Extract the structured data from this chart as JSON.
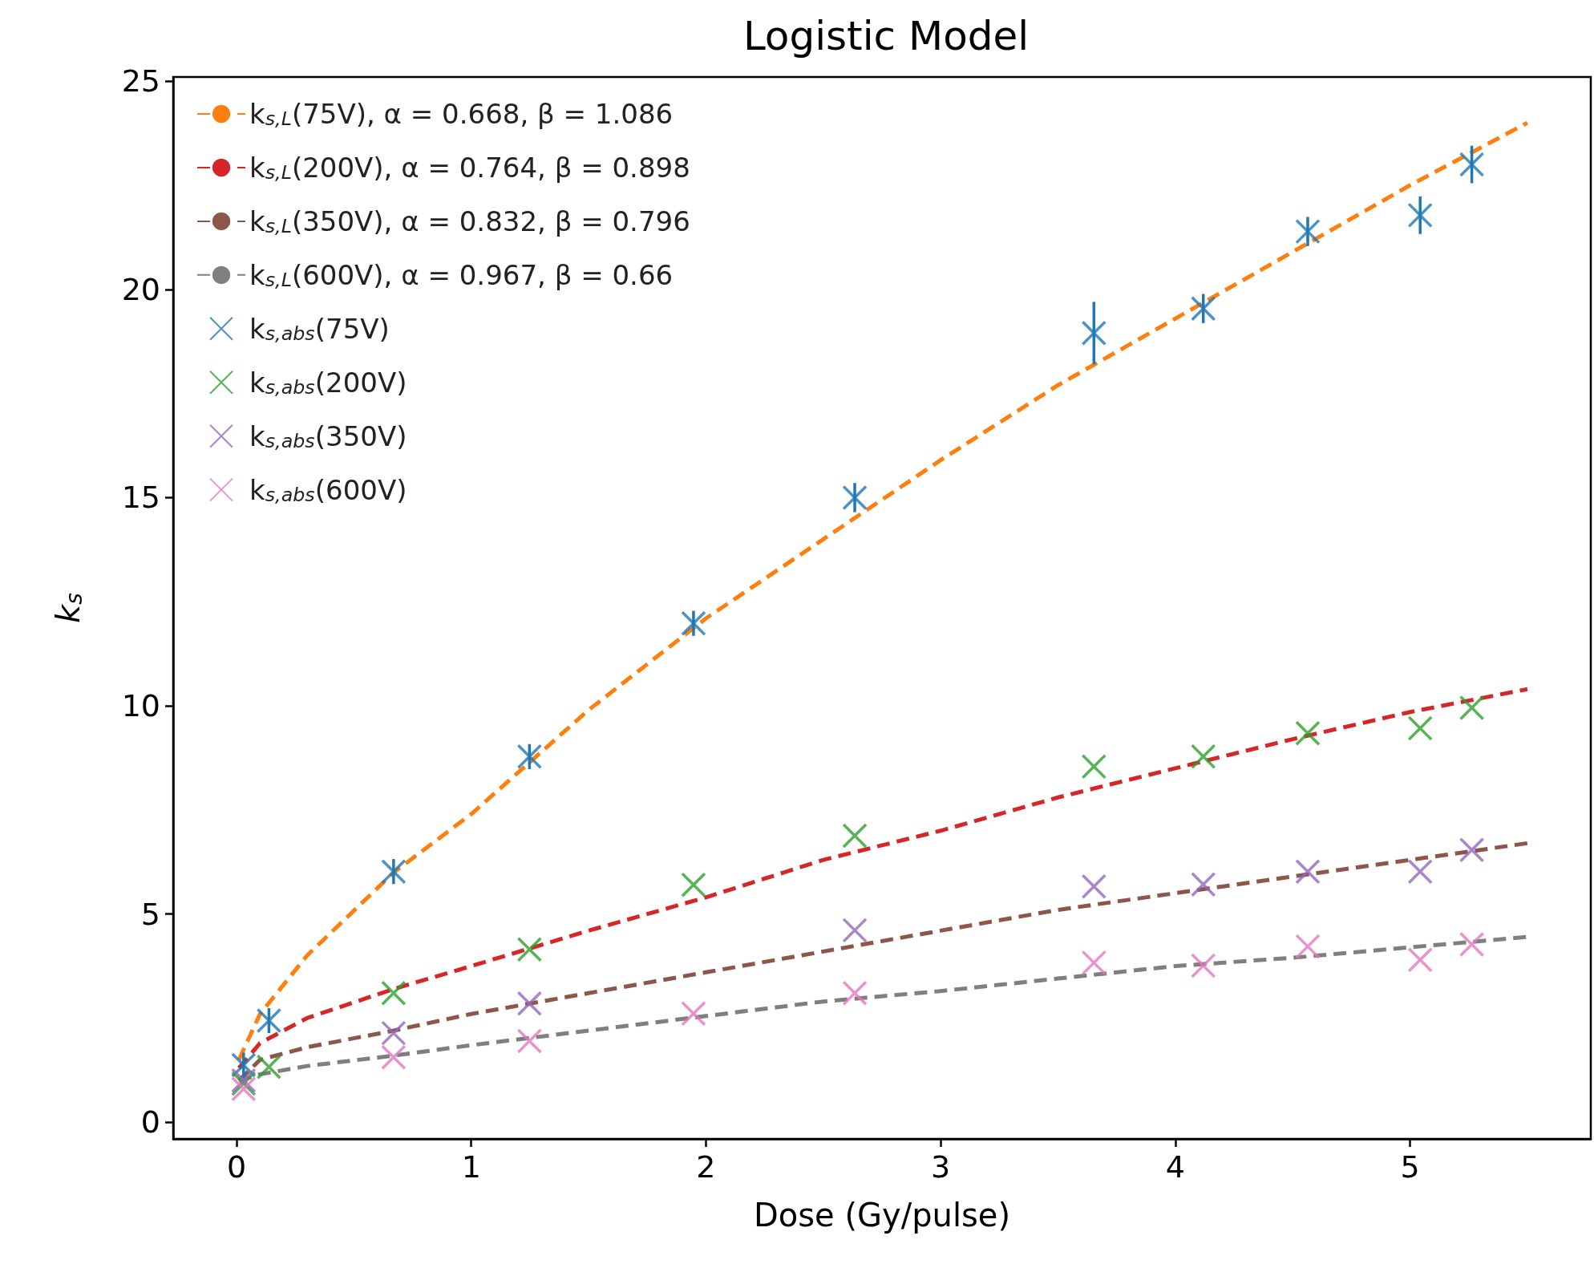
{
  "chart_data": {
    "type": "scatter",
    "title": "Logistic Model",
    "xlabel": "Dose (Gy/pulse)",
    "ylabel": "k$_{s}$",
    "x": [
      0.03,
      0.138,
      0.669,
      1.248,
      1.947,
      2.634,
      3.653,
      4.119,
      4.564,
      5.043,
      5.263
    ],
    "xlim": [
      -0.27,
      5.77
    ],
    "ylim": [
      -0.4,
      25.1
    ],
    "xticks": [
      0,
      1,
      2,
      3,
      4,
      5
    ],
    "yticks": [
      0,
      5,
      10,
      15,
      20,
      25
    ],
    "grid": false,
    "legend": "top left",
    "marker": "cross",
    "series": [
      {
        "name": "k$_{s,L}$(75V), α = 0.668, β = 1.086",
        "type": "line",
        "marker": "none",
        "line_style": "dashed",
        "color": "#ff7f0e",
        "x": [
          0.01,
          0.1,
          0.3,
          0.67,
          1,
          1.5,
          2,
          2.5,
          3,
          3.5,
          4,
          4.5,
          5,
          5.5
        ],
        "values": [
          1.5,
          2.6,
          4.0,
          6.0,
          7.4,
          9.9,
          12.1,
          14.0,
          15.9,
          17.7,
          19.3,
          20.9,
          22.5,
          24.0
        ]
      },
      {
        "name": "k$_{s,L}$(200V), α = 0.764, β = 0.898",
        "type": "line",
        "marker": "none",
        "line_style": "dashed",
        "color": "#d62728",
        "x": [
          0.01,
          0.1,
          0.3,
          0.67,
          1,
          1.5,
          2,
          2.5,
          3,
          3.5,
          4,
          4.5,
          5,
          5.5
        ],
        "values": [
          1.3,
          1.9,
          2.5,
          3.2,
          3.75,
          4.6,
          5.4,
          6.3,
          7.0,
          7.8,
          8.5,
          9.2,
          9.85,
          10.4
        ]
      },
      {
        "name": "k$_{s,L}$(350V), α = 0.832, β = 0.796",
        "type": "line",
        "marker": "none",
        "line_style": "dashed",
        "color": "#8c564b",
        "x": [
          0.01,
          0.1,
          0.3,
          0.67,
          1,
          1.5,
          2,
          2.5,
          3,
          3.5,
          4,
          4.5,
          5,
          5.5
        ],
        "values": [
          1.0,
          1.5,
          1.8,
          2.2,
          2.6,
          3.1,
          3.6,
          4.1,
          4.6,
          5.1,
          5.5,
          5.9,
          6.3,
          6.7
        ]
      },
      {
        "name": "k$_{s,L}$(600V), α = 0.967, β = 0.66",
        "type": "line",
        "marker": "none",
        "line_style": "dashed",
        "color": "#7f7f7f",
        "x": [
          0.01,
          0.1,
          0.3,
          0.67,
          1,
          1.5,
          2,
          2.5,
          3,
          3.5,
          4,
          4.5,
          5,
          5.5
        ],
        "values": [
          1.0,
          1.15,
          1.35,
          1.6,
          1.85,
          2.2,
          2.55,
          2.9,
          3.15,
          3.45,
          3.75,
          3.95,
          4.2,
          4.45
        ]
      },
      {
        "name": "k$_{s,abs}$(75V)",
        "color": "#1f77b4",
        "values": [
          1.37,
          2.44,
          6.02,
          8.78,
          11.98,
          15.0,
          18.95,
          19.54,
          21.39,
          21.78,
          23.0
        ],
        "errors": [
          0.3,
          0.3,
          0.3,
          0.3,
          0.3,
          0.35,
          0.75,
          0.35,
          0.35,
          0.45,
          0.45
        ]
      },
      {
        "name": "k$_{s,abs}$(200V)",
        "color": "#2ca02c",
        "values": [
          0.93,
          1.33,
          3.1,
          4.15,
          5.7,
          6.88,
          8.54,
          8.78,
          9.34,
          9.46,
          9.95
        ]
      },
      {
        "name": "k$_{s,abs}$(350V)",
        "color": "#9467bd",
        "values": [
          1.0,
          null,
          2.14,
          2.85,
          null,
          4.61,
          5.66,
          5.71,
          6.02,
          6.02,
          6.54
        ]
      },
      {
        "name": "k$_{s,abs}$(600V)",
        "color": "#e377c2",
        "values": [
          0.8,
          null,
          1.56,
          1.95,
          2.61,
          3.1,
          3.83,
          3.76,
          4.22,
          3.9,
          4.27
        ]
      }
    ]
  }
}
